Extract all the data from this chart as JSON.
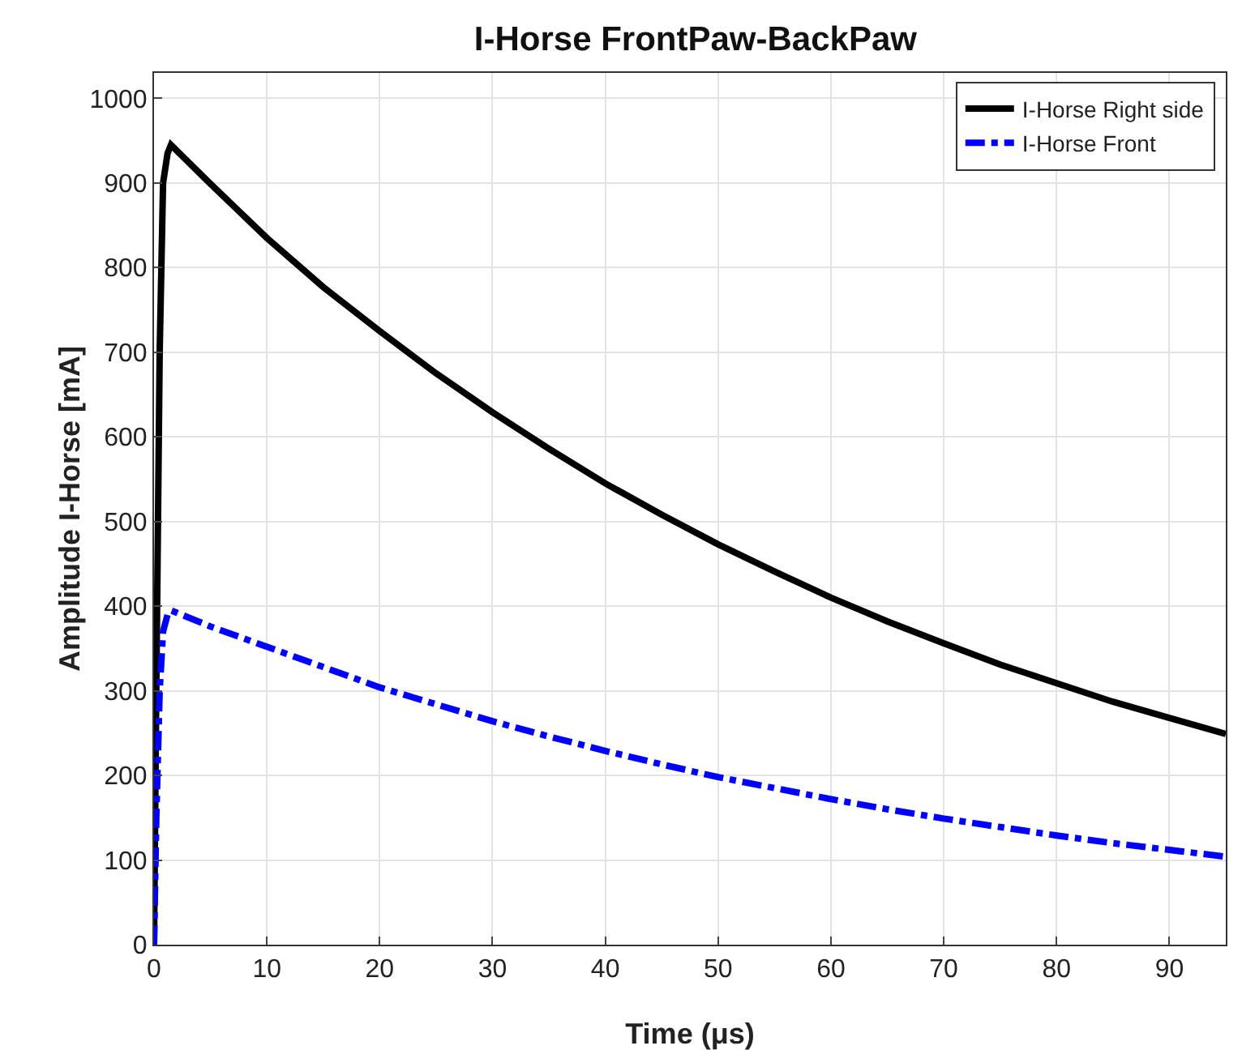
{
  "chart_data": {
    "type": "line",
    "title": "I-Horse FrontPaw-BackPaw",
    "xlabel": "Time (μs)",
    "ylabel": "Amplitude I-Horse [mA]",
    "x": [
      0,
      0.2,
      0.5,
      0.8,
      1.2,
      1.5,
      5,
      10,
      15,
      20,
      25,
      30,
      35,
      40,
      45,
      50,
      55,
      60,
      65,
      70,
      75,
      80,
      85,
      90,
      95
    ],
    "series": [
      {
        "name": "I-Horse Right side",
        "color": "#000000",
        "line_style": "solid",
        "values": [
          0,
          300,
          700,
          900,
          935,
          945,
          899,
          835,
          777,
          725,
          675,
          629,
          586,
          545,
          508,
          473,
          441,
          410,
          382,
          356,
          331,
          309,
          287,
          268,
          249
        ]
      },
      {
        "name": "I-Horse Front",
        "color": "#0000ff",
        "line_style": "dashed",
        "values": [
          0,
          150,
          300,
          370,
          390,
          395,
          376,
          352,
          328,
          304,
          284,
          264,
          246,
          229,
          213,
          198,
          185,
          172,
          160,
          149,
          139,
          129,
          120,
          112,
          104
        ]
      }
    ],
    "xlim": [
      0,
      95
    ],
    "xticks": [
      0,
      10,
      20,
      30,
      40,
      50,
      60,
      70,
      80,
      90
    ],
    "ylim": [
      0,
      1030
    ],
    "yticks": [
      0,
      100,
      200,
      300,
      400,
      500,
      600,
      700,
      800,
      900,
      1000
    ],
    "grid": true,
    "legend": "top right"
  }
}
